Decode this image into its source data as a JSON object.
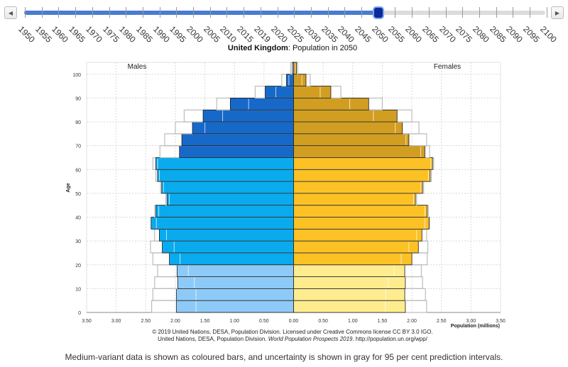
{
  "slider": {
    "prev_button": "◀",
    "next_button": "▶",
    "years": [
      "1950",
      "1955",
      "1960",
      "1965",
      "1970",
      "1975",
      "1980",
      "1985",
      "1990",
      "1995",
      "2000",
      "2005",
      "2010",
      "2015",
      "2019",
      "2020",
      "2025",
      "2030",
      "2035",
      "2040",
      "2045",
      "2050",
      "2055",
      "2060",
      "2065",
      "2070",
      "2075",
      "2080",
      "2085",
      "2090",
      "2095",
      "2100"
    ],
    "selected_year": "2050",
    "accent_color": "#4a7bd0",
    "thumb_color": "#0b2a9b"
  },
  "chart_data": {
    "type": "bar",
    "orientation": "horizontal-pyramid",
    "title_bold": "United Kingdom",
    "title_rest": ": Population in 2050",
    "ylabel": "Age",
    "xlabel": "Population (millions)",
    "left_series_label": "Males",
    "right_series_label": "Females",
    "xlim": [
      -3.5,
      3.5
    ],
    "x_ticks": [
      "3.50",
      "3.00",
      "2.50",
      "2.00",
      "1.50",
      "1.00",
      "0.50",
      "0.00",
      "0.50",
      "1.00",
      "1.50",
      "2.00",
      "2.50",
      "3.00",
      "3.50"
    ],
    "y_ticks": [
      "0",
      "10",
      "20",
      "30",
      "40",
      "50",
      "60",
      "70",
      "80",
      "90",
      "100"
    ],
    "grid": true,
    "age_groups": [
      "0-4",
      "5-9",
      "10-14",
      "15-19",
      "20-24",
      "25-29",
      "30-34",
      "35-39",
      "40-44",
      "45-49",
      "50-54",
      "55-59",
      "60-64",
      "65-69",
      "70-74",
      "75-79",
      "80-84",
      "85-89",
      "90-94",
      "95-99",
      "100+"
    ],
    "series": [
      {
        "name": "Males",
        "values": [
          1.98,
          1.98,
          1.96,
          1.97,
          2.1,
          2.22,
          2.27,
          2.41,
          2.33,
          2.14,
          2.23,
          2.3,
          2.33,
          1.93,
          1.89,
          1.71,
          1.53,
          1.07,
          0.48,
          0.12,
          0.02
        ],
        "uncertainty_high": [
          2.4,
          2.38,
          2.35,
          2.3,
          2.38,
          2.42,
          2.35,
          2.4,
          2.35,
          2.16,
          2.25,
          2.33,
          2.38,
          2.26,
          2.18,
          2.0,
          1.85,
          1.3,
          0.65,
          0.2,
          0.05
        ],
        "uncertainty_low": [
          1.65,
          1.65,
          1.68,
          1.78,
          1.92,
          2.02,
          2.15,
          2.32,
          2.28,
          2.1,
          2.2,
          2.27,
          2.3,
          2.1,
          1.98,
          1.5,
          1.2,
          0.76,
          0.3,
          0.08,
          0.01
        ]
      },
      {
        "name": "Females",
        "values": [
          1.89,
          1.88,
          1.89,
          1.88,
          2.0,
          2.11,
          2.17,
          2.29,
          2.26,
          2.06,
          2.18,
          2.31,
          2.35,
          2.22,
          1.95,
          1.84,
          1.75,
          1.27,
          0.63,
          0.21,
          0.05
        ],
        "uncertainty_high": [
          2.25,
          2.23,
          2.18,
          2.16,
          2.26,
          2.27,
          2.25,
          2.3,
          2.28,
          2.08,
          2.2,
          2.33,
          2.37,
          2.3,
          2.25,
          2.12,
          2.0,
          1.5,
          0.8,
          0.28,
          0.07
        ],
        "uncertainty_low": [
          1.55,
          1.56,
          1.6,
          1.7,
          1.82,
          1.95,
          2.08,
          2.22,
          2.22,
          2.03,
          2.15,
          2.28,
          2.32,
          2.15,
          1.9,
          1.72,
          1.35,
          0.95,
          0.45,
          0.14,
          0.03
        ]
      }
    ],
    "colors": {
      "male_0_19": "#8ecaf8",
      "male_20_64": "#09abee",
      "male_65_plus": "#1769c9",
      "female_0_19": "#feec8e",
      "female_20_64": "#fcc125",
      "female_65_plus": "#d29e21",
      "uncertainty": "#bcbcbc"
    },
    "credits_line1": "© 2019 United Nations, DESA, Population Division. Licensed under Creative Commons license CC BY 3.0 IGO.",
    "credits_line2_a": "United Nations, DESA, Population Division. ",
    "credits_line2_italic": "World Population Prospects 2019",
    "credits_line2_b": ". http://population.un.org/wpp/"
  },
  "footnote": "Medium-variant data is shown as coloured bars, and uncertainty is shown in gray for 95 per cent prediction intervals."
}
